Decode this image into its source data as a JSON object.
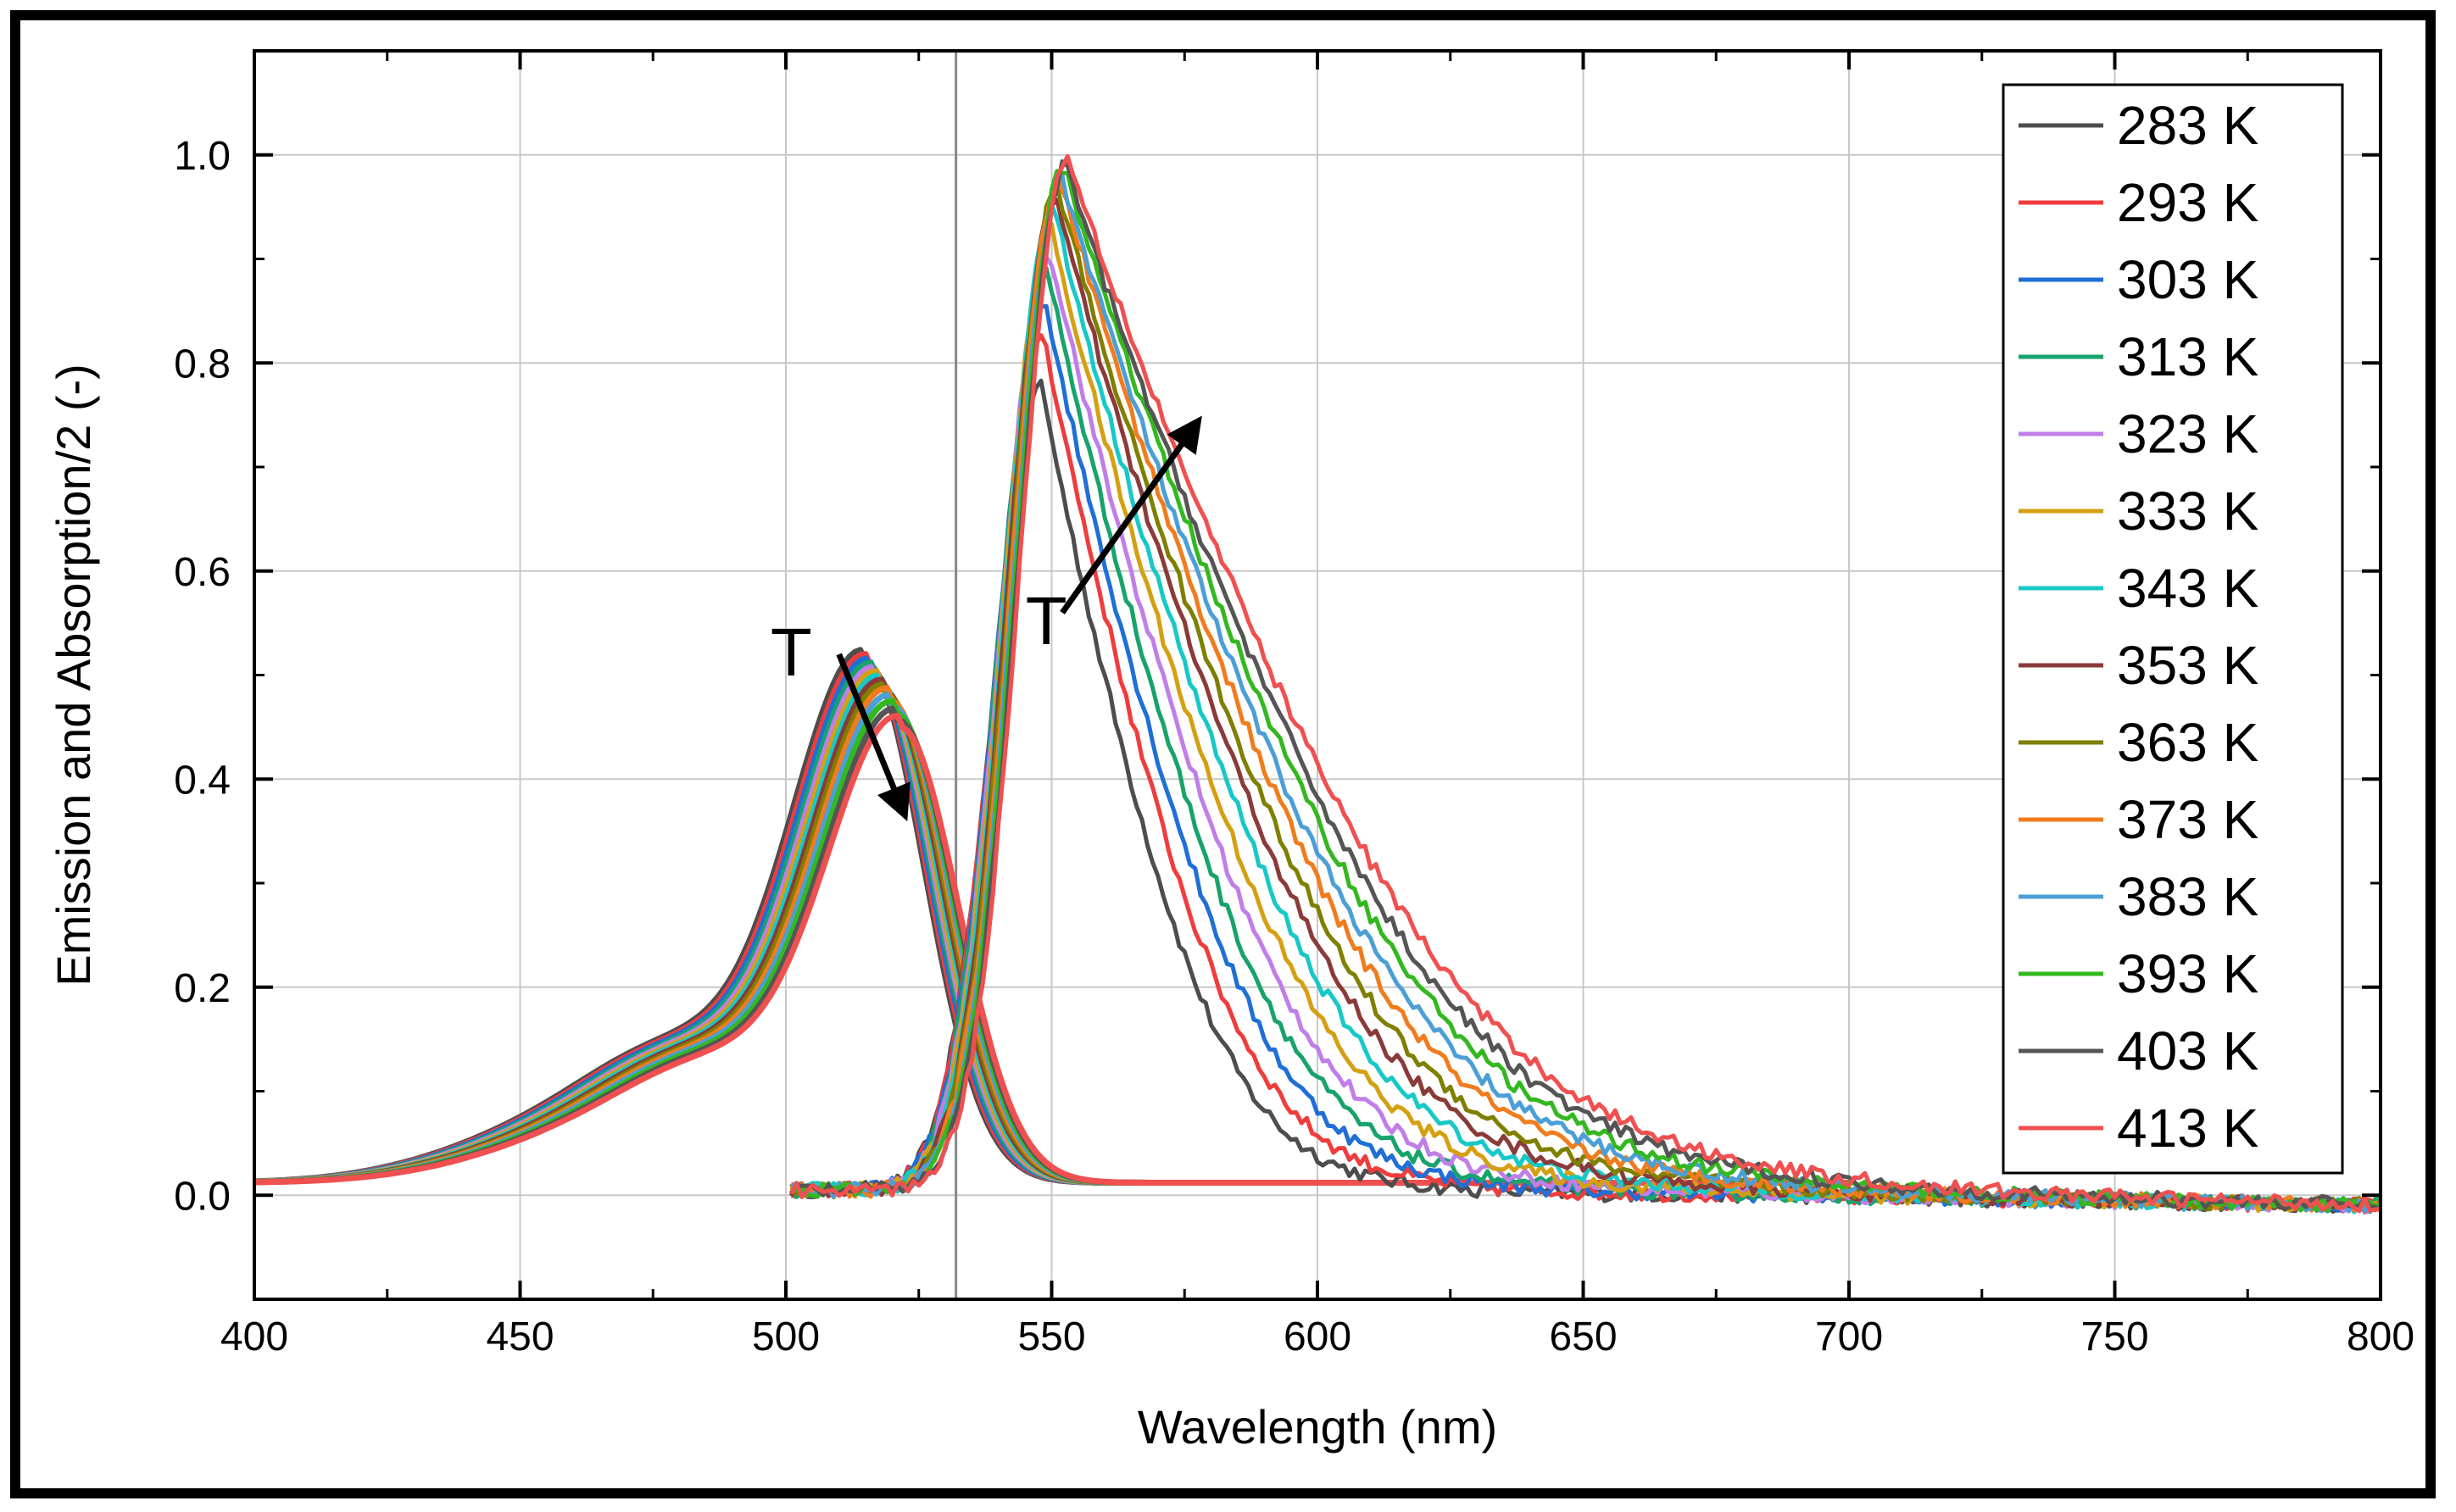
{
  "chart_data": {
    "type": "line",
    "xlabel": "Wavelength (nm)",
    "ylabel": "Emission and Absorption/2 (-)",
    "xlim": [
      400,
      800
    ],
    "ylim": [
      -0.1,
      1.1
    ],
    "xticks": [
      400,
      450,
      500,
      550,
      600,
      650,
      700,
      750,
      800
    ],
    "xtick_labels": [
      "400",
      "450",
      "500",
      "550",
      "600",
      "650",
      "700",
      "750",
      "800"
    ],
    "yticks": [
      0.0,
      0.2,
      0.4,
      0.6,
      0.8,
      1.0
    ],
    "ytick_labels": [
      "0.0",
      "0.2",
      "0.4",
      "0.6",
      "0.8",
      "1.0"
    ],
    "grid": true,
    "excitation_line_nm": 532,
    "legend_position": "top-right",
    "series": [
      {
        "name": "283 K",
        "color": "#4d4d4d",
        "abs_peak_x": 515.0,
        "abs_peak_y": 0.5,
        "em_peak_y": 0.78
      },
      {
        "name": "293 K",
        "color": "#f03c3c",
        "abs_peak_x": 515.5,
        "abs_peak_y": 0.496,
        "em_peak_y": 0.83
      },
      {
        "name": "303 K",
        "color": "#1f6fd6",
        "abs_peak_x": 516.0,
        "abs_peak_y": 0.492,
        "em_peak_y": 0.86
      },
      {
        "name": "313 K",
        "color": "#17a36b",
        "abs_peak_x": 516.5,
        "abs_peak_y": 0.488,
        "em_peak_y": 0.89
      },
      {
        "name": "323 K",
        "color": "#c07ee8",
        "abs_peak_x": 517.0,
        "abs_peak_y": 0.484,
        "em_peak_y": 0.91
      },
      {
        "name": "333 K",
        "color": "#d4a012",
        "abs_peak_x": 517.5,
        "abs_peak_y": 0.48,
        "em_peak_y": 0.93
      },
      {
        "name": "343 K",
        "color": "#18c8c8",
        "abs_peak_x": 518.0,
        "abs_peak_y": 0.476,
        "em_peak_y": 0.95
      },
      {
        "name": "353 K",
        "color": "#8b3a3a",
        "abs_peak_x": 518.5,
        "abs_peak_y": 0.472,
        "em_peak_y": 0.96
      },
      {
        "name": "363 K",
        "color": "#7f7f00",
        "abs_peak_x": 519.0,
        "abs_peak_y": 0.468,
        "em_peak_y": 0.97
      },
      {
        "name": "373 K",
        "color": "#f07c1e",
        "abs_peak_x": 519.5,
        "abs_peak_y": 0.464,
        "em_peak_y": 0.98
      },
      {
        "name": "383 K",
        "color": "#4c9fd6",
        "abs_peak_x": 520.0,
        "abs_peak_y": 0.458,
        "em_peak_y": 0.98
      },
      {
        "name": "393 K",
        "color": "#33b81f",
        "abs_peak_x": 520.5,
        "abs_peak_y": 0.452,
        "em_peak_y": 0.99
      },
      {
        "name": "403 K",
        "color": "#555555",
        "abs_peak_x": 521.0,
        "abs_peak_y": 0.445,
        "em_peak_y": 0.99
      },
      {
        "name": "413 K",
        "color": "#f05050",
        "abs_peak_x": 521.5,
        "abs_peak_y": 0.438,
        "em_peak_y": 1.0
      }
    ],
    "annotations": [
      {
        "text": "T",
        "arrow_from": [
          510,
          0.52
        ],
        "arrow_to": [
          522,
          0.37
        ],
        "label_at": [
          501,
          0.52
        ]
      },
      {
        "text": "T",
        "arrow_from": [
          552,
          0.56
        ],
        "arrow_to": [
          577,
          0.74
        ],
        "label_at": [
          549,
          0.55
        ]
      }
    ]
  }
}
